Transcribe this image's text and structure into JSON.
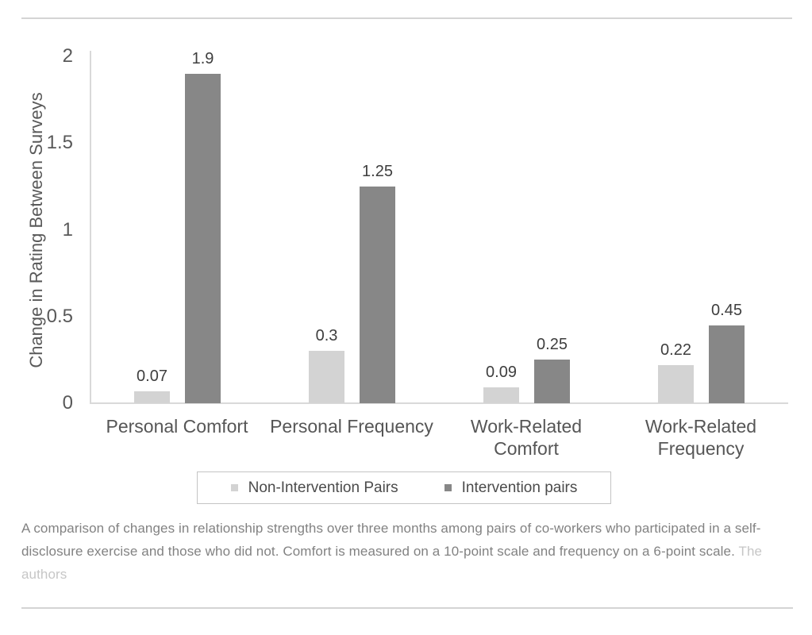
{
  "chart_data": {
    "type": "bar",
    "title": "",
    "ylabel": "Change in Rating Between Surveys",
    "xlabel": "",
    "ylim": [
      0,
      2
    ],
    "yticks": [
      "0",
      "0.5",
      "1",
      "1.5",
      "2"
    ],
    "grid": false,
    "legend_position": "bottom",
    "categories": [
      "Personal Comfort",
      "Personal Frequency",
      "Work-Related\nComfort",
      "Work-Related\nFrequency"
    ],
    "series": [
      {
        "name": "Non-Intervention Pairs",
        "color": "#d3d3d3",
        "values": [
          0.07,
          0.3,
          0.09,
          0.22
        ],
        "labels": [
          "0.07",
          "0.3",
          "0.09",
          "0.22"
        ]
      },
      {
        "name": "Intervention pairs",
        "color": "#878787",
        "values": [
          1.9,
          1.25,
          0.25,
          0.45
        ],
        "labels": [
          "1.9",
          "1.25",
          "0.25",
          "0.45"
        ]
      }
    ]
  },
  "caption": {
    "text": "A comparison of changes in relationship strengths over three months among pairs of co-workers who participated in a self-disclosure exercise and those who did not. Comfort is measured on a 10-point scale and frequency on a 6-point scale.",
    "credit": "The authors"
  }
}
